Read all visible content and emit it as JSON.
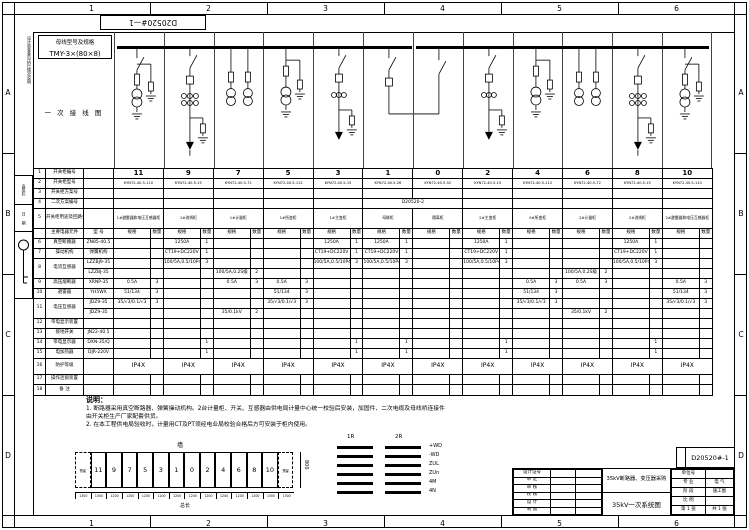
{
  "sheet": {
    "drawing_no_rotated": "D20520#—1"
  },
  "border": {
    "top_labels": [
      "1",
      "2",
      "3",
      "4",
      "5",
      "6"
    ],
    "bottom_labels": [
      "1",
      "2",
      "3",
      "4",
      "5",
      "6"
    ],
    "left_labels": [
      "A",
      "B",
      "C",
      "D"
    ],
    "right_labels": [
      "A",
      "B",
      "C",
      "D"
    ]
  },
  "left_margin": {
    "vertical_strip": "设计审查意见执行情况说明",
    "box1": "会签栏",
    "box2": "日 期"
  },
  "diagram": {
    "bus_spec_label": "母线型号及规格",
    "bus_spec_value": "TMY-3×(80×8)",
    "side_label": "一 次 接 线 图",
    "bays": [
      {
        "id": "11",
        "type": "pt"
      },
      {
        "id": "9",
        "type": "incoming"
      },
      {
        "id": "7",
        "type": "metering"
      },
      {
        "id": "5",
        "type": "stv"
      },
      {
        "id": "3",
        "type": "main"
      },
      {
        "id": "1",
        "type": "tie"
      },
      {
        "id": "0",
        "type": "isolator"
      },
      {
        "id": "2",
        "type": "main"
      },
      {
        "id": "4",
        "type": "stv"
      },
      {
        "id": "6",
        "type": "metering"
      },
      {
        "id": "8",
        "type": "incoming"
      },
      {
        "id": "10",
        "type": "pt"
      }
    ]
  },
  "table": {
    "sub_left": "主要电器元件",
    "sub_model": "型 号",
    "sub_spec": "规格",
    "sub_qty": "数量",
    "rows": [
      {
        "n": "1",
        "label": "开关柜编号",
        "model": "",
        "mode": "full",
        "cls": "num",
        "h": 10,
        "vals": [
          "11",
          "9",
          "7",
          "5",
          "3",
          "1",
          "0",
          "2",
          "4",
          "6",
          "8",
          "10"
        ]
      },
      {
        "n": "2",
        "label": "开关柜型号",
        "model": "",
        "mode": "full",
        "cls": "model",
        "h": 10,
        "vals": [
          "KYN72-40.5-110",
          "KYN72-40.5-15",
          "KYN72-40.5-72",
          "KYN72-40.5-112",
          "KYN72-40.5-15",
          "KYN72-40.5-26",
          "KYN72-40.5-52",
          "KYN72-40.5-15",
          "KYN72-40.5-112",
          "KYN72-40.5-72",
          "KYN72-40.5-15",
          "KYN72-40.5-110"
        ]
      },
      {
        "n": "3",
        "label": "开关柜方案号",
        "model": "",
        "mode": "full",
        "h": 10,
        "vals": [
          "",
          "",
          "",
          "",
          "",
          "",
          "",
          "",
          "",
          "",
          "",
          ""
        ]
      },
      {
        "n": "4",
        "label": "二次方案编号",
        "model": "",
        "mode": "full",
        "h": 10,
        "vals": [
          "",
          "",
          "",
          "",
          "",
          {
            "span": 2,
            "t": "D20520-2"
          },
          null,
          "",
          "",
          "",
          "",
          ""
        ]
      },
      {
        "n": "5",
        "label": "开关柜用途及回路名称",
        "model": "",
        "mode": "full",
        "cls": "purpose",
        "h": 20,
        "vals": [
          "1#避雷器和电压互感器柜",
          "1#进线柜",
          "1#计量柜",
          "1#所变柜",
          "1#主变柜",
          "母联柜",
          "隔离柜",
          "2#主变柜",
          "0#所变柜",
          "2#计量柜",
          "2#进线柜",
          "2#避雷器和电压互感器柜"
        ]
      },
      {
        "mode": "sub",
        "h": 10
      },
      {
        "n": "6",
        "label": "真空断路器",
        "model": "ZN85-40.5",
        "h": 10,
        "cells": {
          "1": [
            "1250A",
            "1"
          ],
          "4": [
            "1250A",
            "1"
          ],
          "5": [
            "1250A",
            "1"
          ],
          "7": [
            "1250A",
            "1"
          ],
          "10": [
            "1250A",
            "1"
          ]
        }
      },
      {
        "n": "7",
        "label": "操动机构",
        "model": "弹簧机构",
        "h": 10,
        "cells": {
          "1": [
            "CT19+DC220V",
            "1"
          ],
          "4": [
            "CT19+DC220V",
            "1"
          ],
          "5": [
            "CT19+DC220V",
            "1"
          ],
          "7": [
            "CT19+DC220V",
            "1"
          ],
          "10": [
            "CT19+DC220V",
            "1"
          ]
        }
      },
      {
        "n": "8",
        "label": "电流互感器",
        "model": "LZZBJ9-35",
        "rs": 2,
        "h": 10,
        "cells": {
          "1": [
            "100/5A,0.5/10P40",
            "3"
          ],
          "4": [
            "100/5A,0.5/10P40",
            "3"
          ],
          "5": [
            "100/5A,0.5/10P40",
            "3"
          ],
          "7": [
            "100/5A,0.5/10P40",
            "3"
          ],
          "10": [
            "100/5A,0.5/10P40",
            "3"
          ]
        }
      },
      {
        "cont": true,
        "model": "LZZBJ-35",
        "h": 10,
        "cells": {
          "2": [
            "100/5A,0.2S级",
            "2"
          ],
          "9": [
            "100/5A,0.2S级",
            "2"
          ]
        }
      },
      {
        "n": "9",
        "label": "高压熔断器",
        "model": "XRNP-35",
        "h": 10,
        "cells": {
          "0": [
            "0.5A",
            "3"
          ],
          "2": [
            "0.5A",
            "3"
          ],
          "3": [
            "0.5A",
            "3"
          ],
          "8": [
            "0.5A",
            "3"
          ],
          "9": [
            "0.5A",
            "3"
          ],
          "11": [
            "0.5A",
            "3"
          ]
        }
      },
      {
        "n": "10",
        "label": "避雷器",
        "model": "YH5WX",
        "h": 10,
        "cells": {
          "0": [
            "51/134",
            "3"
          ],
          "3": [
            "51/134",
            "3"
          ],
          "8": [
            "51/134",
            "3"
          ],
          "11": [
            "51/134",
            "3"
          ]
        }
      },
      {
        "n": "11",
        "label": "电压互感器",
        "model": "JDZ9-35",
        "rs": 2,
        "h": 10,
        "cells": {
          "0": [
            "35/√3/0.1/√3",
            "3"
          ],
          "3": [
            "35/√3/0.1/√3",
            "3"
          ],
          "8": [
            "35/√3/0.1/√3",
            "3"
          ],
          "11": [
            "35/√3/0.1/√3",
            "3"
          ]
        }
      },
      {
        "cont": true,
        "model": "JDZ9-35",
        "h": 10,
        "cells": {
          "2": [
            "35/0.1kV",
            "2"
          ],
          "9": [
            "35/0.1kV",
            "2"
          ]
        }
      },
      {
        "n": "12",
        "label": "带电显示装置",
        "model": "",
        "h": 10,
        "cells": {}
      },
      {
        "n": "13",
        "label": "接地开关",
        "model": "JN22-40.5",
        "h": 10,
        "cells": {}
      },
      {
        "n": "14",
        "label": "带电显示器",
        "model": "DXN-35/Q",
        "h": 10,
        "cells": {
          "1": [
            "",
            "1"
          ],
          "4": [
            "",
            "1"
          ],
          "5": [
            "",
            "1"
          ],
          "7": [
            "",
            "1"
          ],
          "10": [
            "",
            "1"
          ]
        }
      },
      {
        "n": "15",
        "label": "电加热器",
        "model": "DJR-220V",
        "h": 10,
        "cells": {
          "1": [
            "",
            "1"
          ],
          "4": [
            "",
            "1"
          ],
          "5": [
            "",
            "1"
          ],
          "7": [
            "",
            "1"
          ],
          "10": [
            "",
            "1"
          ]
        }
      },
      {
        "n": "16",
        "label": "防护等级",
        "model": "",
        "mode": "span2",
        "all": "IP4X",
        "cls": "ip",
        "h": 16
      },
      {
        "n": "17",
        "label": "操作连锁装置",
        "model": "",
        "h": 10,
        "cells": {}
      },
      {
        "n": "18",
        "label": "备        注",
        "model": "",
        "h": 11,
        "cells": {}
      }
    ]
  },
  "notes": {
    "heading": "说明：",
    "items": [
      "1. 断路器采用真空断路器、弹簧操动机构。2台计量柜、开关、互感器由供电局计量中心统一校验后安装，加固件、二次电缆及母线桥连接件由开关柜生产厂家配套供货。",
      "2. 在本工程供电局验收时，计量用CT及PT须经电业局校验合格后方可安装于柜内使用。"
    ]
  },
  "legend": {
    "headers": [
      "1R",
      "2R"
    ],
    "labels": [
      "+WD",
      "-WD",
      "ZUL",
      "ZUn",
      "4M",
      "4N"
    ]
  },
  "layout": {
    "wall_label": "墙",
    "reserved_label": "预留",
    "cells": [
      "预留",
      "11",
      "9",
      "7",
      "5",
      "3",
      "1",
      "0",
      "2",
      "4",
      "6",
      "8",
      "10",
      "预留"
    ],
    "bold_cells": [
      "11",
      "7",
      "6",
      "10"
    ],
    "dims": [
      "1300",
      "1300",
      "1200",
      "1200",
      "1200",
      "1200",
      "1200",
      "1200",
      "1200",
      "1200",
      "1200",
      "1200",
      "1300",
      "1300"
    ],
    "total_label": "总长",
    "height_dim": "800"
  },
  "titleblock": {
    "drawing_no": "D20520#-1",
    "sign_rows": [
      "设计证号",
      "审 定",
      "审 核",
      "校 核",
      "设 计",
      "制 图"
    ],
    "title1": "35kV断路器、变压器采购",
    "title2": "35kV一次系统图",
    "right_rows": [
      [
        "单位号",
        ""
      ],
      [
        "专 业",
        "电 气"
      ],
      [
        "阶 段",
        "施工图"
      ],
      [
        "比 例",
        ""
      ],
      [
        "第 1 张",
        "共 1 张"
      ]
    ]
  }
}
